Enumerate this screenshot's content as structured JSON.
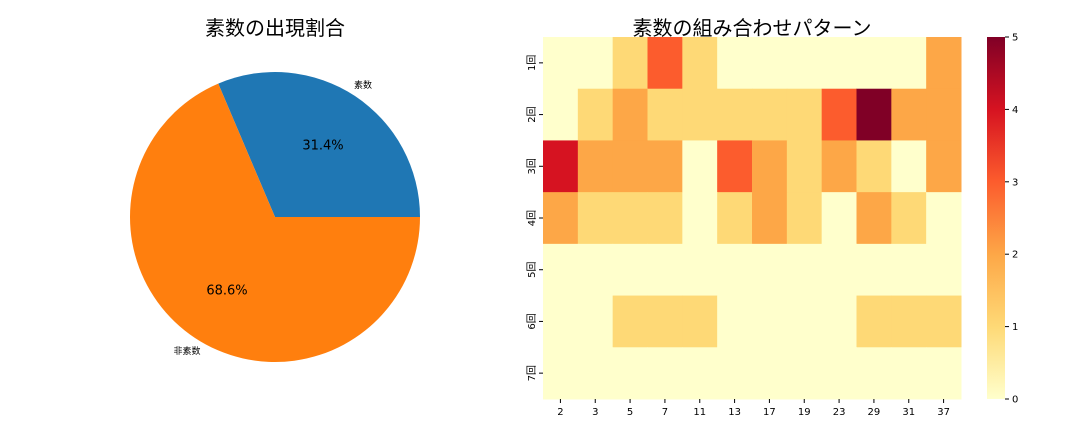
{
  "chart_data": [
    {
      "type": "pie",
      "title": "素数の出現割合",
      "labels": [
        "素数",
        "非素数"
      ],
      "values": [
        31.4,
        68.6
      ],
      "autopct": [
        "31.4%",
        "68.6%"
      ],
      "colors": [
        "#1f77b4",
        "#ff7f0e"
      ],
      "startangle": 0
    },
    {
      "type": "heatmap",
      "title": "素数の組み合わせパターン",
      "x": [
        "2",
        "3",
        "5",
        "7",
        "11",
        "13",
        "17",
        "19",
        "23",
        "29",
        "31",
        "37"
      ],
      "y": [
        "1回",
        "2回",
        "3回",
        "4回",
        "5回",
        "6回",
        "7回"
      ],
      "values": [
        [
          0,
          0,
          1,
          3,
          1,
          0,
          0,
          0,
          0,
          0,
          0,
          2
        ],
        [
          0,
          1,
          2,
          1,
          1,
          1,
          1,
          1,
          3,
          5,
          2,
          2
        ],
        [
          4,
          2,
          2,
          2,
          0,
          3,
          2,
          1,
          2,
          1,
          0,
          2
        ],
        [
          2,
          1,
          1,
          1,
          0,
          1,
          2,
          1,
          0,
          2,
          1,
          0
        ],
        [
          0,
          0,
          0,
          0,
          0,
          0,
          0,
          0,
          0,
          0,
          0,
          0
        ],
        [
          0,
          0,
          1,
          1,
          1,
          0,
          0,
          0,
          0,
          1,
          1,
          1
        ],
        [
          0,
          0,
          0,
          0,
          0,
          0,
          0,
          0,
          0,
          0,
          0,
          0
        ]
      ],
      "colormap": "YlOrRd",
      "colorbar": {
        "min": 0,
        "max": 5,
        "ticks": [
          "0",
          "1",
          "2",
          "3",
          "4",
          "5"
        ]
      }
    }
  ]
}
